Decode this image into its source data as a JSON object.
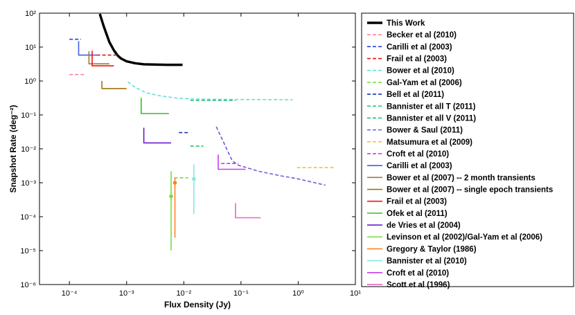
{
  "chart_data": {
    "type": "line",
    "xscale": "log",
    "yscale": "log",
    "xlim": [
      3e-05,
      10
    ],
    "ylim": [
      1e-06,
      100
    ],
    "xlabel": "Flux Density (Jy)",
    "ylabel": "Snapshot Rate (deg⁻²)",
    "x_ticks": [
      {
        "value": 0.0001,
        "label": "10⁻⁴"
      },
      {
        "value": 0.001,
        "label": "10⁻³"
      },
      {
        "value": 0.01,
        "label": "10⁻²"
      },
      {
        "value": 0.1,
        "label": "10⁻¹"
      },
      {
        "value": 1,
        "label": "10⁰"
      },
      {
        "value": 10,
        "label": "10¹"
      }
    ],
    "y_ticks": [
      {
        "value": 1e-06,
        "label": "10⁻⁶"
      },
      {
        "value": 1e-05,
        "label": "10⁻⁵"
      },
      {
        "value": 0.0001,
        "label": "10⁻⁴"
      },
      {
        "value": 0.001,
        "label": "10⁻³"
      },
      {
        "value": 0.01,
        "label": "10⁻²"
      },
      {
        "value": 0.1,
        "label": "10⁻¹"
      },
      {
        "value": 1,
        "label": "10⁰"
      },
      {
        "value": 10,
        "label": "10¹"
      },
      {
        "value": 100,
        "label": "10²"
      }
    ],
    "series": [
      {
        "name": "This Work",
        "color": "#000000",
        "style": "solid",
        "kind": "line",
        "width": 3.5,
        "points": [
          [
            0.00034,
            95
          ],
          [
            0.0004,
            40
          ],
          [
            0.0005,
            14
          ],
          [
            0.0006,
            8
          ],
          [
            0.0007,
            5.6
          ],
          [
            0.0008,
            4.6
          ],
          [
            0.001,
            3.8
          ],
          [
            0.0014,
            3.35
          ],
          [
            0.002,
            3.1
          ],
          [
            0.005,
            3.0
          ],
          [
            0.0095,
            3.0
          ]
        ]
      },
      {
        "name": "Becker et al (2010)",
        "color": "#ff7f9f",
        "style": "dashed",
        "kind": "line",
        "points": [
          [
            0.0001,
            1.55
          ],
          [
            0.00018,
            1.55
          ]
        ]
      },
      {
        "name": "Carilli et al (2003)",
        "color": "#1f3fdf",
        "style": "dashed",
        "kind": "line",
        "points": [
          [
            0.0001,
            17
          ],
          [
            0.00016,
            17
          ]
        ]
      },
      {
        "name": "Frail et al (2003)",
        "color": "#e81010",
        "style": "dashed",
        "kind": "line",
        "points": [
          [
            0.0003,
            5.8
          ],
          [
            0.0007,
            5.8
          ]
        ]
      },
      {
        "name": "Bower et al (2010)",
        "color": "#60e0d8",
        "style": "dashed",
        "kind": "line",
        "points": [
          [
            0.00105,
            0.95
          ],
          [
            0.0014,
            0.65
          ],
          [
            0.0022,
            0.45
          ],
          [
            0.004,
            0.36
          ],
          [
            0.008,
            0.31
          ],
          [
            0.02,
            0.29
          ],
          [
            0.1,
            0.285
          ],
          [
            0.8,
            0.28
          ]
        ]
      },
      {
        "name": "Gal-Yam et al (2006)",
        "color": "#7fe030",
        "style": "dashed",
        "kind": "line",
        "points": [
          [
            0.0068,
            0.0014
          ],
          [
            0.012,
            0.0014
          ]
        ]
      },
      {
        "name": "Bell et al (2011)",
        "color": "#1a2fc0",
        "style": "dashed",
        "kind": "line",
        "points": [
          [
            0.0082,
            0.03
          ],
          [
            0.0125,
            0.03
          ]
        ]
      },
      {
        "name": "Bannister et all T (2011)",
        "color": "#20c070",
        "style": "dashed",
        "kind": "line",
        "points": [
          [
            0.013,
            0.27
          ],
          [
            0.08,
            0.27
          ]
        ]
      },
      {
        "name": "Bannister et all V (2011)",
        "color": "#20c070",
        "style": "dashed",
        "kind": "line",
        "points": [
          [
            0.013,
            0.012
          ],
          [
            0.022,
            0.012
          ]
        ]
      },
      {
        "name": "Bower & Saul (2011)",
        "color": "#6a5ae0",
        "style": "dashed",
        "kind": "line",
        "points": [
          [
            0.037,
            0.045
          ],
          [
            0.07,
            0.0045
          ],
          [
            0.09,
            0.0033
          ],
          [
            0.2,
            0.0022
          ],
          [
            0.5,
            0.0016
          ],
          [
            1,
            0.0013
          ],
          [
            3,
            0.00085
          ]
        ]
      },
      {
        "name": "Matsumura et al (2009)",
        "color": "#f5c040",
        "style": "dashed",
        "kind": "line",
        "points": [
          [
            0.95,
            0.0028
          ],
          [
            4.5,
            0.0028
          ]
        ]
      },
      {
        "name": "Croft et al (2010)",
        "color": "#c040d0",
        "style": "dashed",
        "kind": "line",
        "points": [
          [
            0.045,
            0.0037
          ],
          [
            0.09,
            0.0037
          ]
        ]
      },
      {
        "name": "Carilli et al (2003)",
        "color": "#3f5fe8",
        "style": "solid",
        "kind": "step",
        "points": [
          [
            0.000145,
            15
          ],
          [
            0.000145,
            5.8
          ],
          [
            0.00032,
            5.8
          ]
        ]
      },
      {
        "name": "Bower et al (2007) -- 2 month transients",
        "color": "#a07a30",
        "style": "solid",
        "kind": "step",
        "points": [
          [
            0.00022,
            7.5
          ],
          [
            0.00022,
            3.2
          ],
          [
            0.0005,
            3.2
          ]
        ]
      },
      {
        "name": "Bower et al (2007) -- single epoch transients",
        "color": "#a07010",
        "style": "solid",
        "kind": "step",
        "points": [
          [
            0.00037,
            1.0
          ],
          [
            0.00037,
            0.6
          ],
          [
            0.001,
            0.6
          ]
        ]
      },
      {
        "name": "Frail et al (2003)",
        "color": "#f01010",
        "style": "solid",
        "kind": "step",
        "points": [
          [
            0.00025,
            7.8
          ],
          [
            0.00025,
            2.8
          ],
          [
            0.0006,
            2.8
          ]
        ]
      },
      {
        "name": "Ofek et al (2011)",
        "color": "#30c020",
        "style": "solid",
        "kind": "step",
        "points": [
          [
            0.0018,
            0.32
          ],
          [
            0.0018,
            0.11
          ],
          [
            0.0055,
            0.11
          ]
        ]
      },
      {
        "name": "de Vries et al (2004)",
        "color": "#6a18c8",
        "style": "solid",
        "kind": "step",
        "points": [
          [
            0.002,
            0.042
          ],
          [
            0.002,
            0.015
          ],
          [
            0.006,
            0.015
          ]
        ]
      },
      {
        "name": "Levinson et al (2002)/Gal-Yam et al (2006)",
        "color": "#70e040",
        "style": "solid",
        "kind": "point",
        "x": 0.006,
        "y": 0.0004,
        "ylow": 1e-05,
        "yhigh": 0.0022
      },
      {
        "name": "Gregory & Taylor (1986)",
        "color": "#ff8020",
        "style": "solid",
        "kind": "point",
        "x": 0.007,
        "y": 0.001,
        "ylow": 2.4e-05,
        "yhigh": 0.0014
      },
      {
        "name": "Bannister et al (2010)",
        "color": "#80ece0",
        "style": "solid",
        "kind": "point",
        "x": 0.015,
        "y": 0.0013,
        "ylow": 0.00012,
        "yhigh": 0.0035
      },
      {
        "name": "Croft et al (2010)",
        "color": "#c040e8",
        "style": "solid",
        "kind": "step",
        "points": [
          [
            0.04,
            0.0068
          ],
          [
            0.04,
            0.0025
          ],
          [
            0.12,
            0.0025
          ]
        ]
      },
      {
        "name": "Scott et al (1996)",
        "color": "#f060c8",
        "style": "solid",
        "kind": "step",
        "points": [
          [
            0.08,
            0.00025
          ],
          [
            0.08,
            9.3e-05
          ],
          [
            0.22,
            9.3e-05
          ]
        ]
      }
    ]
  }
}
